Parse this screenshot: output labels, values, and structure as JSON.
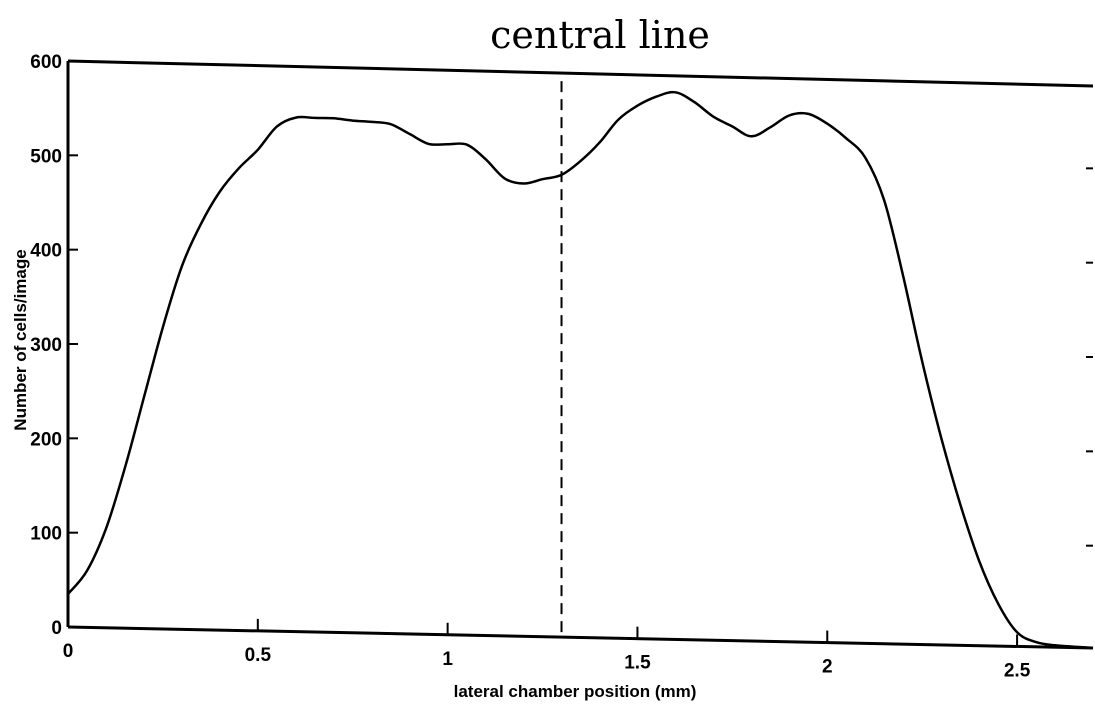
{
  "chart_data": {
    "type": "line",
    "title": "central line",
    "xlabel": "lateral chamber position (mm)",
    "ylabel": "Number of cells/image",
    "xlim": [
      0,
      2.7
    ],
    "ylim": [
      0,
      600
    ],
    "x_ticks": [
      0,
      0.5,
      1,
      1.5,
      2,
      2.5
    ],
    "x_tick_labels": [
      "0",
      "0.5",
      "1",
      "1.5",
      "2",
      "2.5"
    ],
    "y_ticks": [
      0,
      100,
      200,
      300,
      400,
      500,
      600
    ],
    "y_tick_labels": [
      "0",
      "100",
      "200",
      "300",
      "400",
      "500",
      "600"
    ],
    "reference_line": {
      "x": 1.3,
      "style": "dashed"
    },
    "series": [
      {
        "x": [
          0,
          0.05,
          0.1,
          0.15,
          0.2,
          0.25,
          0.3,
          0.35,
          0.4,
          0.45,
          0.5,
          0.55,
          0.6,
          0.65,
          0.7,
          0.75,
          0.8,
          0.85,
          0.9,
          0.95,
          1.0,
          1.05,
          1.1,
          1.15,
          1.2,
          1.25,
          1.3,
          1.35,
          1.4,
          1.45,
          1.5,
          1.55,
          1.6,
          1.65,
          1.7,
          1.75,
          1.8,
          1.85,
          1.9,
          1.95,
          2.0,
          2.05,
          2.1,
          2.15,
          2.2,
          2.25,
          2.3,
          2.35,
          2.4,
          2.45,
          2.5,
          2.55,
          2.6,
          2.65,
          2.7
        ],
        "values": [
          35,
          60,
          105,
          170,
          245,
          320,
          385,
          430,
          465,
          490,
          510,
          535,
          545,
          545,
          545,
          543,
          542,
          540,
          530,
          520,
          520,
          520,
          505,
          485,
          480,
          485,
          490,
          505,
          525,
          550,
          565,
          575,
          580,
          570,
          555,
          545,
          535,
          545,
          558,
          560,
          550,
          535,
          515,
          470,
          390,
          300,
          220,
          150,
          90,
          45,
          15,
          5,
          2,
          1,
          0
        ]
      }
    ]
  }
}
